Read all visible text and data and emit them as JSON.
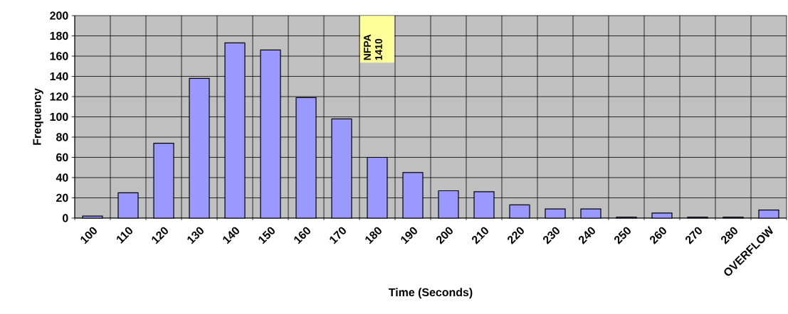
{
  "chart_data": {
    "type": "bar",
    "xlabel": "Time (Seconds)",
    "ylabel": "Frequency",
    "categories": [
      "100",
      "110",
      "120",
      "130",
      "140",
      "150",
      "160",
      "170",
      "180",
      "190",
      "200",
      "210",
      "220",
      "230",
      "240",
      "250",
      "260",
      "270",
      "280",
      "OVERFLOW"
    ],
    "values": [
      2,
      25,
      74,
      138,
      173,
      166,
      119,
      98,
      60,
      45,
      27,
      26,
      13,
      9,
      9,
      1,
      5,
      1,
      1,
      8
    ],
    "color": "#9999ff",
    "ylim": [
      0,
      200
    ],
    "yticks": [
      0,
      20,
      40,
      60,
      80,
      100,
      120,
      140,
      160,
      180,
      200
    ],
    "grid": true,
    "annotations": [
      "NFPA 1410"
    ]
  }
}
